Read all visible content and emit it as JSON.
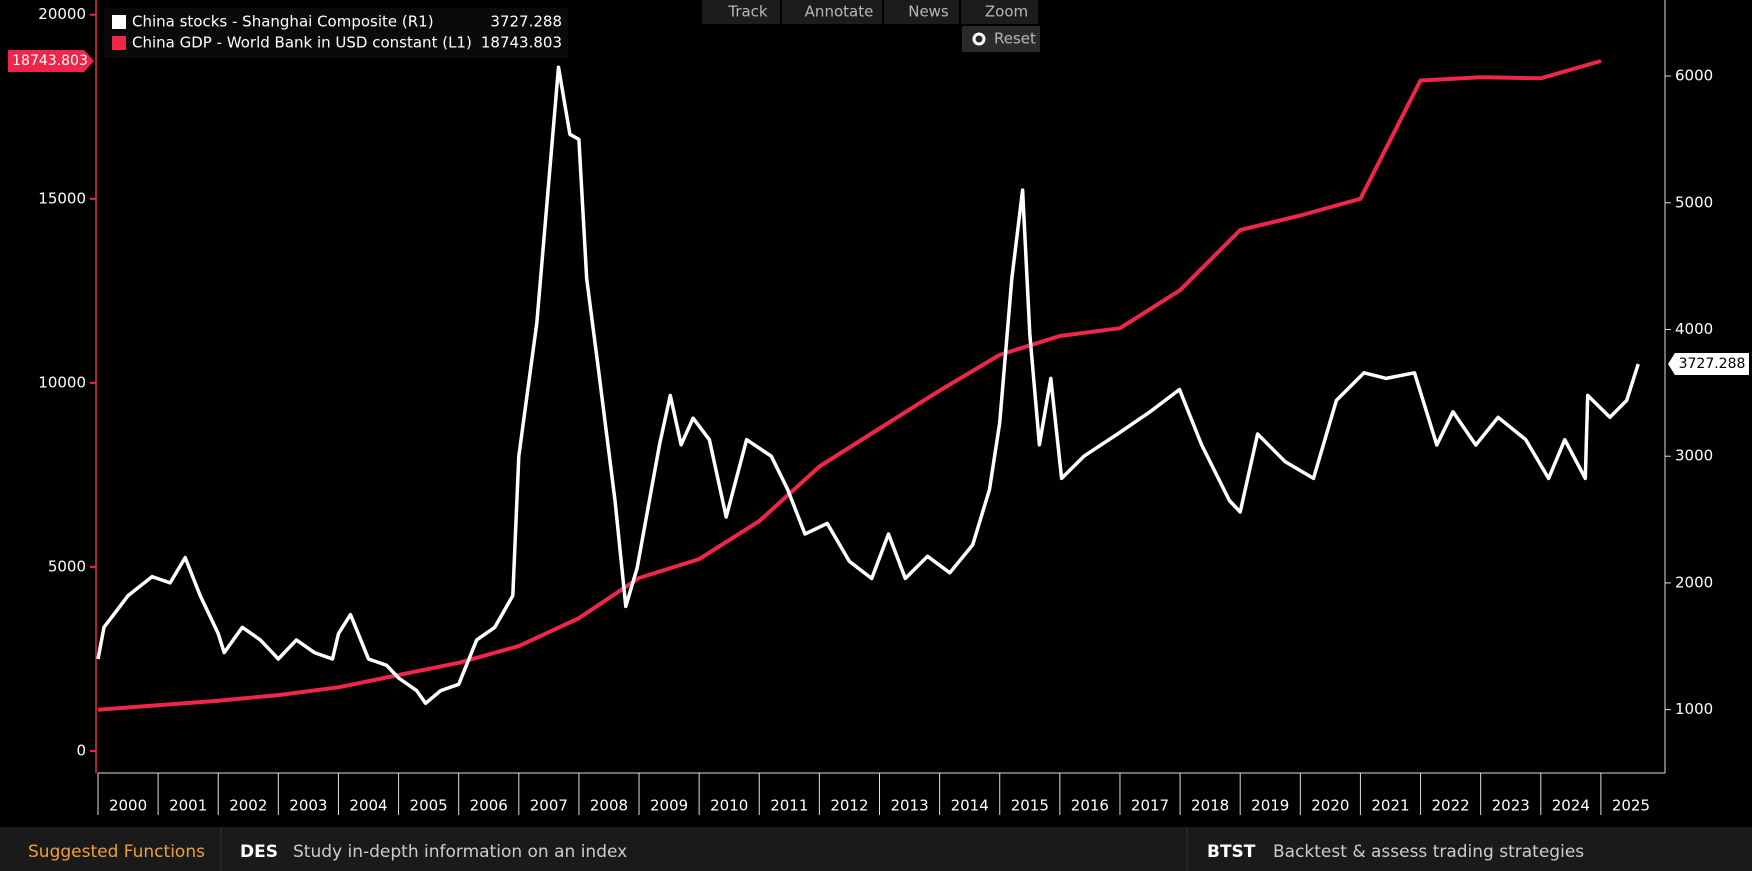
{
  "toolbar": {
    "buttons": [
      "Track",
      "Annotate",
      "News",
      "Zoom"
    ],
    "reset": "Reset"
  },
  "chart_data": {
    "type": "line",
    "series": [
      {
        "name": "China stocks - Shanghai Composite (R1)",
        "color": "#ffffff",
        "axis": "y2",
        "x": [
          2000.0,
          2000.1,
          2000.5,
          2000.9,
          2001.2,
          2001.45,
          2001.7,
          2001.9,
          2002.0,
          2002.1,
          2002.4,
          2002.7,
          2002.9,
          2003.0,
          2003.3,
          2003.6,
          2003.9,
          2004.0,
          2004.2,
          2004.5,
          2004.8,
          2005.0,
          2005.3,
          2005.45,
          2005.7,
          2006.0,
          2006.3,
          2006.6,
          2006.9,
          2007.0,
          2007.3,
          2007.66,
          2007.85,
          2008.0,
          2008.13,
          2008.32,
          2008.6,
          2008.78,
          2008.97,
          2009.34,
          2009.52,
          2009.7,
          2009.9,
          2010.17,
          2010.45,
          2010.79,
          2011.2,
          2011.47,
          2011.76,
          2012.13,
          2012.5,
          2012.87,
          2013.15,
          2013.43,
          2013.8,
          2014.17,
          2014.55,
          2014.83,
          2015.0,
          2015.2,
          2015.38,
          2015.5,
          2015.66,
          2015.85,
          2016.03,
          2016.4,
          2016.96,
          2017.5,
          2017.99,
          2018.36,
          2018.82,
          2019.0,
          2019.29,
          2019.75,
          2020.22,
          2020.6,
          2021.06,
          2021.43,
          2021.9,
          2022.27,
          2022.54,
          2022.92,
          2023.29,
          2023.75,
          2024.13,
          2024.4,
          2024.74,
          2024.78,
          2025.15,
          2025.43,
          2025.62
        ],
        "values": [
          1400,
          1650,
          1900,
          2050,
          2000,
          2200,
          1900,
          1700,
          1600,
          1450,
          1650,
          1550,
          1450,
          1400,
          1550,
          1450,
          1400,
          1600,
          1750,
          1400,
          1350,
          1250,
          1150,
          1050,
          1150,
          1200,
          1550,
          1650,
          1900,
          3000,
          4050,
          6070,
          5540,
          5500,
          4400,
          3700,
          2650,
          1815,
          2120,
          3090,
          3480,
          3090,
          3300,
          3130,
          2520,
          3130,
          3000,
          2740,
          2386,
          2470,
          2170,
          2035,
          2386,
          2035,
          2210,
          2080,
          2300,
          2737,
          3263,
          4400,
          5100,
          3965,
          3090,
          3614,
          2825,
          3000,
          3175,
          3350,
          3526,
          3088,
          2650,
          2560,
          3175,
          2956,
          2825,
          3440,
          3658,
          3614,
          3658,
          3088,
          3350,
          3088,
          3307,
          3131,
          2825,
          3130,
          2825,
          3480,
          3307,
          3440,
          3727.288
        ]
      },
      {
        "name": "China GDP - World Bank in USD constant (L1)",
        "color": "#f0254a",
        "x": [
          2000,
          2001,
          2002,
          2003,
          2004,
          2005,
          2006,
          2007,
          2008,
          2009,
          2010,
          2011,
          2012,
          2013,
          2014,
          2015,
          2016,
          2017,
          2018,
          2019,
          2020,
          2021,
          2022,
          2023,
          2024,
          2025
        ],
        "values": [
          1121,
          1242,
          1364,
          1515,
          1727,
          2061,
          2394,
          2848,
          3606,
          4697,
          5212,
          6242,
          7727,
          8758,
          9788,
          10758,
          11273,
          11485,
          12515,
          14152,
          14545,
          15000,
          18212,
          18303,
          18273,
          18743.803
        ]
      }
    ],
    "xlim": [
      2000,
      2026
    ],
    "xticks": [
      2000,
      2001,
      2002,
      2003,
      2004,
      2005,
      2006,
      2007,
      2008,
      2009,
      2010,
      2011,
      2012,
      2013,
      2014,
      2015,
      2016,
      2017,
      2018,
      2019,
      2020,
      2021,
      2022,
      2023,
      2024,
      2025
    ],
    "ylim": [
      -600,
      20400
    ],
    "yticks": [
      0,
      5000,
      10000,
      15000,
      20000
    ],
    "y2lim": [
      500,
      6600
    ],
    "y2ticks": [
      1000,
      2000,
      3000,
      4000,
      5000,
      6000
    ]
  },
  "footer": {
    "heading": "Suggested Functions",
    "items": [
      {
        "code": "DES",
        "text": "Study in-depth information on an index"
      },
      {
        "code": "BTST",
        "text": "Backtest & assess trading strategies"
      }
    ]
  }
}
